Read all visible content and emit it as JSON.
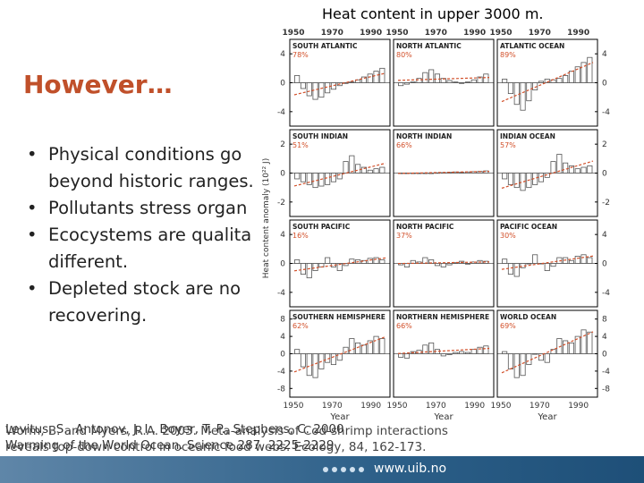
{
  "slide": {
    "chart_title": "Heat content in upper 3000 m.",
    "heading": "However…",
    "bullets": [
      "Physical conditions go beyond historic ranges.",
      "Pollutants stress organ",
      "Ecocystems are qualita different.",
      "Depleted stock are no recovering."
    ],
    "citations": [
      "Levitus, S., Antonov, J. I., Boyer, T. P., Stephens, C. 2000",
      "Warming of the World Ocean. Science 287, 2225-2229",
      "Worm, B. and Myers, R.A. 2003. Meta-analysis of Cod-shrimp interactions",
      "reveals top-down control in oceanic food webs. Ecology, 84, 162-173."
    ],
    "footer_url": "www.uib.no"
  },
  "colors": {
    "heading": "#c0502a",
    "footer": "#2c5f88",
    "trend": "#d2502a",
    "bar": "#555555"
  },
  "chart_data": {
    "type": "bar",
    "title": "Heat content in upper 3000 m.",
    "xlabel": "Year",
    "ylabel": "Heat content anomaly (10²² J)",
    "x_ticks": [
      "1950",
      "1970",
      "1990"
    ],
    "x_range": [
      1950,
      1998
    ],
    "rows": [
      {
        "y_ticks": [
          "4",
          "0",
          "-4"
        ],
        "ylim": [
          -6,
          6
        ]
      },
      {
        "y_ticks": [
          "2",
          "0",
          "-2"
        ],
        "ylim": [
          -3,
          3
        ]
      },
      {
        "y_ticks": [
          "4",
          "0",
          "-4"
        ],
        "ylim": [
          -6,
          6
        ]
      },
      {
        "y_ticks": [
          "8",
          "4",
          "0",
          "-4",
          "-8"
        ],
        "ylim": [
          -10,
          10
        ]
      }
    ],
    "panels": [
      {
        "label": "SOUTH ATLANTIC",
        "pct": "78%",
        "values": [
          1.0,
          -0.8,
          -1.8,
          -2.3,
          -2.0,
          -1.4,
          -0.9,
          -0.4,
          -0.1,
          0.1,
          0.4,
          0.8,
          1.2,
          1.6,
          2.0
        ]
      },
      {
        "label": "NORTH ATLANTIC",
        "pct": "80%",
        "values": [
          -0.4,
          -0.2,
          0.1,
          0.6,
          1.4,
          1.8,
          1.2,
          0.6,
          0.3,
          0.1,
          -0.1,
          0.1,
          0.4,
          0.8,
          1.2
        ]
      },
      {
        "label": "ATLANTIC OCEAN",
        "pct": "89%",
        "values": [
          0.5,
          -1.5,
          -3.0,
          -3.8,
          -2.5,
          -1.0,
          0.2,
          0.5,
          0.4,
          0.6,
          1.0,
          1.6,
          2.2,
          2.8,
          3.5
        ]
      },
      {
        "label": "SOUTH INDIAN",
        "pct": "51%",
        "values": [
          -0.4,
          -0.6,
          -0.8,
          -1.0,
          -0.9,
          -0.8,
          -0.6,
          -0.4,
          0.8,
          1.2,
          0.6,
          0.4,
          0.2,
          0.3,
          0.4
        ]
      },
      {
        "label": "NORTH INDIAN",
        "pct": "66%",
        "values": [
          0,
          0,
          0,
          0,
          0,
          0,
          0.02,
          0.03,
          0.05,
          0.08,
          0.05,
          0.08,
          0.1,
          0.12,
          0.15
        ]
      },
      {
        "label": "INDIAN OCEAN",
        "pct": "57%",
        "values": [
          -0.4,
          -0.8,
          -1.0,
          -1.2,
          -1.0,
          -0.8,
          -0.6,
          -0.3,
          0.8,
          1.3,
          0.7,
          0.5,
          0.3,
          0.4,
          0.5
        ]
      },
      {
        "label": "SOUTH PACIFIC",
        "pct": "16%",
        "values": [
          0.5,
          -1.5,
          -2.0,
          -1.0,
          -0.5,
          0.8,
          -0.5,
          -1.0,
          -0.3,
          0.6,
          0.5,
          0.4,
          0.7,
          0.8,
          0.5
        ]
      },
      {
        "label": "NORTH PACIFIC",
        "pct": "37%",
        "values": [
          -0.2,
          -0.5,
          0.4,
          0.2,
          0.8,
          0.5,
          -0.3,
          -0.5,
          -0.2,
          0.1,
          0.3,
          -0.1,
          0.2,
          0.4,
          0.3
        ]
      },
      {
        "label": "PACIFIC OCEAN",
        "pct": "30%",
        "values": [
          0.6,
          -1.5,
          -1.8,
          -0.6,
          0.0,
          1.2,
          0.0,
          -1.0,
          -0.4,
          0.8,
          0.8,
          0.4,
          1.0,
          1.2,
          0.8
        ]
      },
      {
        "label": "SOUTHERN HEMISPHERE",
        "pct": "62%",
        "values": [
          1.0,
          -3.0,
          -5.0,
          -5.5,
          -3.5,
          -2.0,
          -2.5,
          -1.5,
          1.5,
          3.5,
          2.5,
          2.0,
          3.0,
          4.0,
          3.5
        ]
      },
      {
        "label": "NORTHERN HEMISPHERE",
        "pct": "66%",
        "values": [
          -0.8,
          -1.0,
          0.5,
          0.8,
          2.0,
          2.5,
          1.0,
          -0.5,
          -0.2,
          0.3,
          0.5,
          0.3,
          1.0,
          1.5,
          1.8
        ]
      },
      {
        "label": "WORLD OCEAN",
        "pct": "69%",
        "values": [
          0.5,
          -3.5,
          -5.5,
          -5.0,
          -2.5,
          0.0,
          -1.5,
          -2.0,
          1.0,
          3.5,
          3.0,
          2.5,
          4.0,
          5.5,
          5.0
        ]
      }
    ]
  }
}
